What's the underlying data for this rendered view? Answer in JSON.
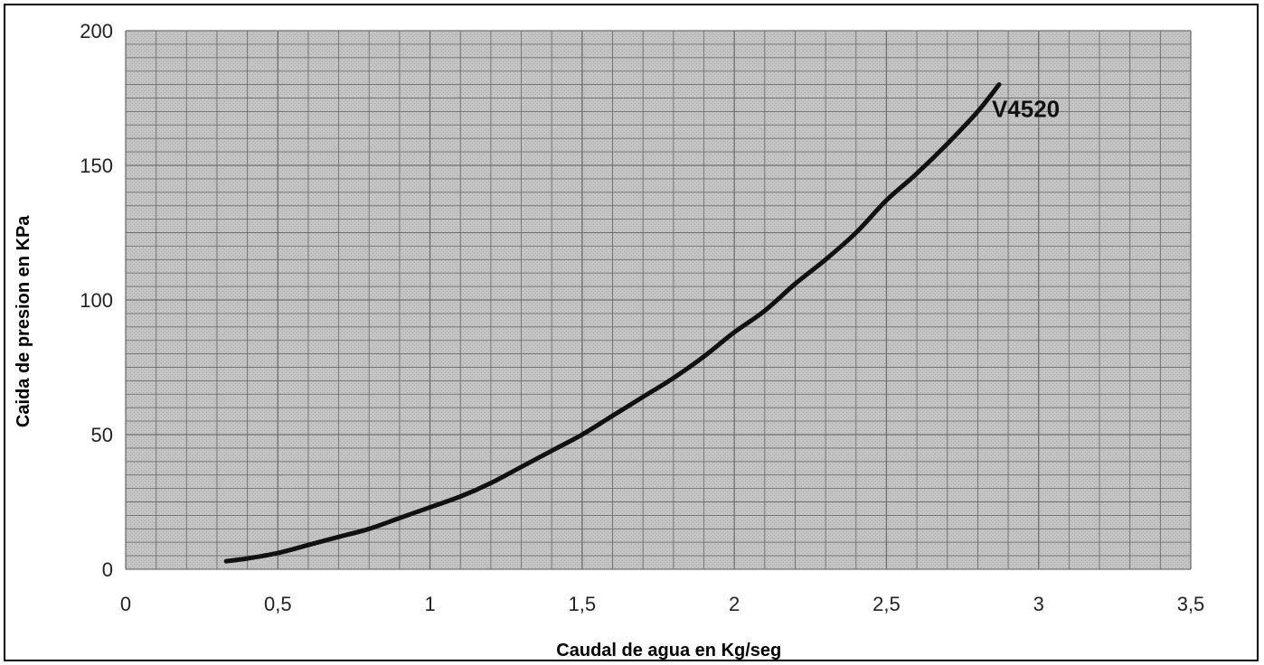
{
  "chart_data": {
    "type": "line",
    "title": "",
    "xlabel": "Caudal de agua en Kg/seg",
    "ylabel": "Caida de presion en KPa",
    "xlim": [
      0,
      3.5
    ],
    "ylim": [
      0,
      200
    ],
    "x_ticks": [
      "0",
      "0,5",
      "1",
      "1,5",
      "2",
      "2,5",
      "3",
      "3,5"
    ],
    "y_ticks": [
      "0",
      "50",
      "100",
      "150",
      "200"
    ],
    "grid": true,
    "series": [
      {
        "name": "V4520",
        "x": [
          0.33,
          0.4,
          0.5,
          0.6,
          0.7,
          0.8,
          0.9,
          1.0,
          1.1,
          1.2,
          1.3,
          1.4,
          1.5,
          1.6,
          1.7,
          1.8,
          1.9,
          2.0,
          2.1,
          2.2,
          2.3,
          2.4,
          2.5,
          2.6,
          2.7,
          2.8,
          2.87
        ],
        "y": [
          3,
          4,
          6,
          9,
          12,
          15,
          19,
          23,
          27,
          32,
          38,
          44,
          50,
          57,
          64,
          71,
          79,
          88,
          96,
          106,
          115,
          125,
          137,
          147,
          158,
          170,
          180
        ]
      }
    ]
  },
  "colors": {
    "plot_background": "#bdbdbd",
    "grid_line": "#6f6f6f",
    "curve": "#111111",
    "text": "#222222"
  }
}
